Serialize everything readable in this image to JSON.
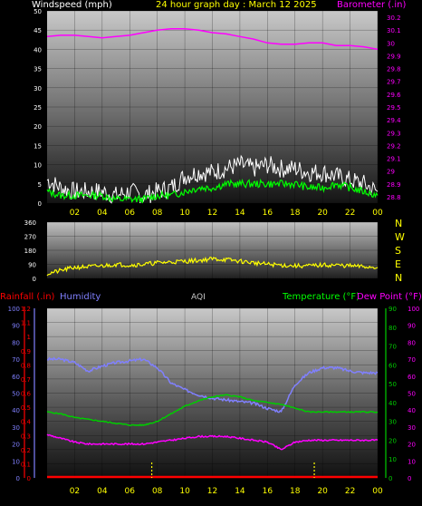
{
  "colors": {
    "white": "#ffffff",
    "yellow": "#ffff00",
    "magenta": "#ff00ff",
    "blue": "#8080ff",
    "green": "#00ff00",
    "red": "#ff0000",
    "gray_text": "#c8c8c8"
  },
  "chart_data": [
    {
      "type": "line",
      "title": "24 hour graph day : March 12 2025",
      "left_axis_label": "Windspeed (mph)",
      "right_axis_label": "Barometer (.in)",
      "x_ticks": [
        "02",
        "04",
        "06",
        "08",
        "10",
        "12",
        "14",
        "16",
        "18",
        "20",
        "22",
        "00"
      ],
      "y_left_ticks": [
        "50",
        "45",
        "40",
        "35",
        "30",
        "25",
        "20",
        "15",
        "10",
        "5",
        "0"
      ],
      "y_left_range": [
        0,
        50
      ],
      "y_right_ticks": [
        "30.2",
        "30.1",
        "30",
        "29.9",
        "29.8",
        "29.7",
        "29.6",
        "29.5",
        "29.4",
        "29.3",
        "29.2",
        "29.1",
        "29",
        "28.9",
        "28.8"
      ],
      "y_right_range": [
        28.75,
        30.25
      ],
      "series": [
        {
          "color": "#ffffff",
          "x": [
            0,
            1,
            2,
            3,
            4,
            5,
            6,
            7,
            8,
            9,
            10,
            11,
            12,
            13,
            14,
            15,
            16,
            17,
            18,
            19,
            20,
            21,
            22,
            23,
            24
          ],
          "values": [
            6,
            4,
            3,
            3,
            3,
            2,
            3,
            2,
            3,
            4,
            7,
            8,
            8,
            9,
            10,
            9,
            10,
            9,
            9,
            8,
            8,
            7,
            6,
            5,
            3
          ]
        },
        {
          "color": "#00ff00",
          "x": [
            0,
            1,
            2,
            3,
            4,
            5,
            6,
            7,
            8,
            9,
            10,
            11,
            12,
            13,
            14,
            15,
            16,
            17,
            18,
            19,
            20,
            21,
            22,
            23,
            24
          ],
          "values": [
            3,
            2,
            2,
            2,
            2,
            1,
            1,
            1,
            2,
            2,
            3,
            4,
            4,
            5,
            5,
            5,
            5,
            5,
            5,
            4,
            4,
            5,
            4,
            3,
            2
          ]
        },
        {
          "color": "#ff00ff",
          "x": [
            0,
            1,
            2,
            3,
            4,
            5,
            6,
            7,
            8,
            9,
            10,
            11,
            12,
            13,
            14,
            15,
            16,
            17,
            18,
            19,
            20,
            21,
            22,
            23,
            24
          ],
          "values": [
            30.05,
            30.06,
            30.06,
            30.05,
            30.04,
            30.05,
            30.06,
            30.08,
            30.1,
            30.11,
            30.11,
            30.1,
            30.08,
            30.07,
            30.05,
            30.03,
            30.0,
            29.99,
            29.99,
            30.0,
            30.0,
            29.98,
            29.98,
            29.97,
            29.95
          ]
        }
      ]
    },
    {
      "type": "line",
      "title": "",
      "right_axis_label_letters": [
        "N",
        "W",
        "S",
        "E",
        "N"
      ],
      "y_ticks": [
        "360",
        "270",
        "180",
        "90",
        "0"
      ],
      "y_range": [
        0,
        360
      ],
      "series": [
        {
          "color": "#ffff00",
          "x": [
            0,
            1,
            2,
            3,
            4,
            5,
            6,
            7,
            8,
            9,
            10,
            11,
            12,
            13,
            14,
            15,
            16,
            17,
            18,
            19,
            20,
            21,
            22,
            23,
            24
          ],
          "values": [
            30,
            50,
            70,
            75,
            80,
            90,
            85,
            90,
            100,
            105,
            110,
            115,
            125,
            120,
            110,
            100,
            90,
            85,
            80,
            80,
            85,
            85,
            80,
            75,
            70
          ]
        }
      ]
    },
    {
      "type": "line",
      "labels": {
        "rainfall": "Rainfall (.in)",
        "humidity": "Humidity",
        "aqi": "AQI",
        "temperature": "Temperature (°F)",
        "dew_point": "Dew Point (°F)"
      },
      "x_ticks": [
        "02",
        "04",
        "06",
        "08",
        "10",
        "12",
        "14",
        "16",
        "18",
        "20",
        "22",
        "00"
      ],
      "y_rain_ticks": [
        "1.2",
        "1.1",
        "1",
        "0.9",
        "0.8",
        "0.7",
        "0.6",
        "0.5",
        "0.4",
        "0.3",
        "0.2",
        "0.1",
        "0"
      ],
      "y_rain_range": [
        0,
        1.2
      ],
      "y_humidity_ticks": [
        "100",
        "90",
        "80",
        "70",
        "60",
        "50",
        "40",
        "30",
        "20",
        "10",
        "0"
      ],
      "y_humidity_range": [
        0,
        100
      ],
      "y_temp_ticks": [
        "90",
        "80",
        "70",
        "60",
        "50",
        "40",
        "30",
        "20",
        "10",
        "0"
      ],
      "y_temp_range": [
        0,
        90
      ],
      "y_far_right_ticks": [
        "100",
        "90",
        "80",
        "70",
        "60",
        "50",
        "40",
        "30",
        "20",
        "10",
        "0"
      ],
      "series": [
        {
          "name": "Humidity",
          "color": "#8080ff",
          "axis": "humidity",
          "x": [
            0,
            1,
            2,
            3,
            4,
            5,
            6,
            7,
            8,
            9,
            10,
            11,
            12,
            13,
            14,
            15,
            16,
            17,
            18,
            19,
            20,
            21,
            22,
            23,
            24
          ],
          "values": [
            70,
            70,
            68,
            63,
            66,
            68,
            69,
            70,
            65,
            56,
            52,
            49,
            47,
            46,
            45,
            44,
            41,
            39,
            55,
            62,
            65,
            65,
            63,
            62,
            62
          ]
        },
        {
          "name": "Temperature (°F)",
          "color": "#00cc00",
          "axis": "temp",
          "x": [
            0,
            1,
            2,
            3,
            4,
            5,
            6,
            7,
            8,
            9,
            10,
            11,
            12,
            13,
            14,
            15,
            16,
            17,
            18,
            19,
            20,
            21,
            22,
            23,
            24
          ],
          "values": [
            35,
            34,
            32,
            31,
            30,
            29,
            28,
            28,
            30,
            34,
            38,
            41,
            43,
            44,
            43,
            41,
            40,
            39,
            37,
            35,
            35,
            35,
            35,
            35,
            35
          ]
        },
        {
          "name": "Dew Point (°F)",
          "color": "#ff00ff",
          "axis": "temp",
          "x": [
            0,
            1,
            2,
            3,
            4,
            5,
            6,
            7,
            8,
            9,
            10,
            11,
            12,
            13,
            14,
            15,
            16,
            17,
            18,
            19,
            20,
            21,
            22,
            23,
            24
          ],
          "values": [
            23,
            21,
            19,
            18,
            18,
            18,
            18,
            18,
            19,
            20,
            21,
            22,
            22,
            22,
            21,
            20,
            19,
            15,
            19,
            20,
            20,
            20,
            20,
            20,
            20
          ]
        },
        {
          "name": "Rainfall (.in)",
          "color": "#ff0000",
          "axis": "rain",
          "x": [
            0,
            24
          ],
          "values": [
            0,
            0
          ]
        }
      ],
      "markers_x": [
        7.6,
        19.4
      ]
    }
  ]
}
